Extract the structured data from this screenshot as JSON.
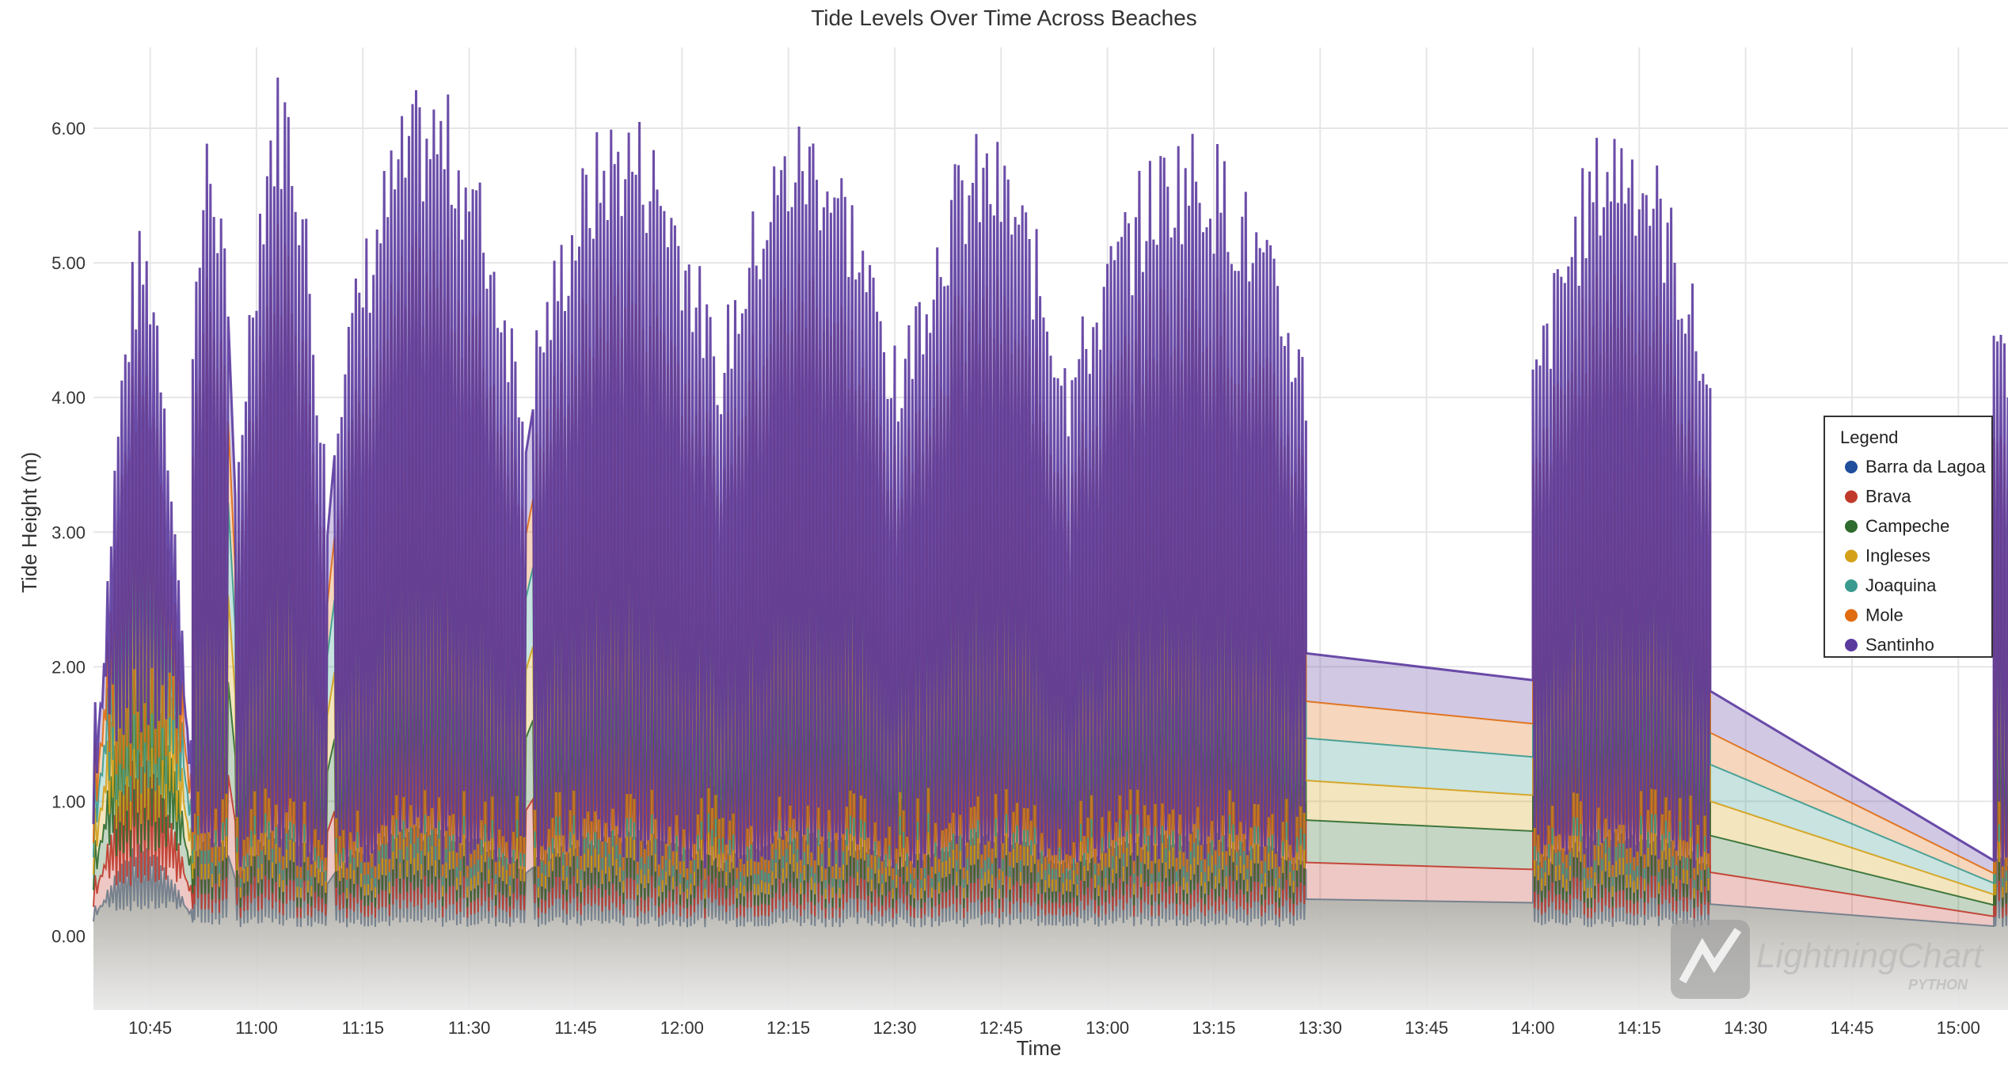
{
  "chart_data": {
    "type": "area",
    "title": "Tide Levels Over Time Across Beaches",
    "xlabel": "Time",
    "ylabel": "Tide Height (m)",
    "x_ticks": [
      "10:45",
      "11:00",
      "11:15",
      "11:30",
      "11:45",
      "12:00",
      "12:15",
      "12:30",
      "12:45",
      "13:00",
      "13:15",
      "13:30",
      "13:45",
      "14:00",
      "14:15",
      "14:30",
      "14:45",
      "15:00"
    ],
    "y_ticks": [
      "0.00",
      "1.00",
      "2.00",
      "3.00",
      "4.00",
      "5.00",
      "6.00"
    ],
    "xlim": [
      "10:37",
      "15:07"
    ],
    "ylim": [
      -0.55,
      6.6
    ],
    "grid": true,
    "legend": {
      "title": "Legend",
      "position": "right"
    },
    "stacked": true,
    "series": [
      {
        "name": "Barra da Lagoa",
        "color": "#1f4e9c"
      },
      {
        "name": "Brava",
        "color": "#c0392b"
      },
      {
        "name": "Campeche",
        "color": "#2e6b2e"
      },
      {
        "name": "Ingleses",
        "color": "#d4a017"
      },
      {
        "name": "Joaquina",
        "color": "#3a9a8f"
      },
      {
        "name": "Mole",
        "color": "#e06c10"
      },
      {
        "name": "Santinho",
        "color": "#5b3a9e"
      }
    ],
    "segments": [
      {
        "start": "10:37",
        "end": "10:51",
        "sample_min": 1.4,
        "peak_total": [
          0.9,
          5.3
        ]
      },
      {
        "start": "10:51",
        "end": "10:56",
        "sample_min": 0.5,
        "peak_total": [
          4.7,
          6.1
        ]
      },
      {
        "start": "10:57",
        "end": "11:10",
        "sample_min": 0.5,
        "peak_total": [
          3.4,
          6.5
        ]
      },
      {
        "start": "11:11",
        "end": "11:38",
        "sample_min": 0.5,
        "peak_total": [
          4.2,
          6.35
        ]
      },
      {
        "start": "11:39",
        "end": "12:05",
        "sample_min": 0.5,
        "peak_total": [
          4.5,
          6.2
        ]
      },
      {
        "start": "12:05",
        "end": "12:30",
        "sample_min": 0.5,
        "peak_total": [
          4.4,
          6.15
        ]
      },
      {
        "start": "12:30",
        "end": "12:55",
        "sample_min": 0.5,
        "peak_total": [
          4.2,
          6.0
        ]
      },
      {
        "start": "12:55",
        "end": "13:28",
        "sample_min": 0.5,
        "peak_total": [
          4.4,
          6.05
        ]
      },
      {
        "start": "13:28",
        "end": "14:00",
        "gap": true,
        "totals": [
          2.1,
          1.9
        ]
      },
      {
        "start": "14:00",
        "end": "14:25",
        "sample_min": 0.5,
        "peak_total": [
          4.3,
          6.15
        ]
      },
      {
        "start": "14:25",
        "end": "15:05",
        "gap": true,
        "totals": [
          1.82,
          0.56
        ]
      },
      {
        "start": "15:05",
        "end": "15:07",
        "sample_min": 0.5,
        "peak_total": [
          4.5,
          4.75
        ]
      }
    ],
    "watermark": {
      "text": "LightningChart",
      "sub": "PYTHON"
    }
  }
}
